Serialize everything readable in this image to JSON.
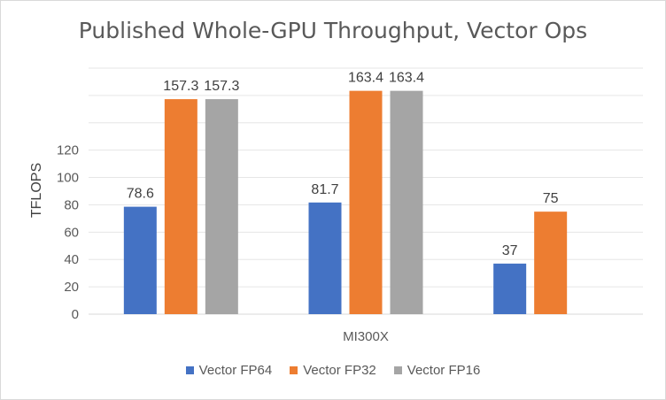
{
  "chart_data": {
    "type": "bar",
    "title": "Published Whole-GPU Throughput, Vector Ops",
    "xlabel": "",
    "ylabel": "TFLOPS",
    "ylim": [
      0,
      180
    ],
    "yticks": [
      "0",
      "20",
      "40",
      "60",
      "80",
      "100",
      "120",
      "",
      "",
      ""
    ],
    "ytick_values": [
      0,
      20,
      40,
      60,
      80,
      100,
      120,
      140,
      160,
      180
    ],
    "categories": [
      "",
      "MI300X",
      ""
    ],
    "series": [
      {
        "name": "Vector FP64",
        "color": "#4472c4",
        "values": [
          78.6,
          81.7,
          37
        ],
        "labels": [
          "78.6",
          "81.7",
          "37"
        ]
      },
      {
        "name": "Vector FP32",
        "color": "#ed7d31",
        "values": [
          157.3,
          163.4,
          75
        ],
        "labels": [
          "157.3",
          "163.4",
          "75"
        ]
      },
      {
        "name": "Vector FP16",
        "color": "#a5a5a5",
        "values": [
          157.3,
          163.4,
          null
        ],
        "labels": [
          "157.3",
          "163.4",
          ""
        ]
      }
    ],
    "grid": true,
    "legend": "bottom"
  }
}
